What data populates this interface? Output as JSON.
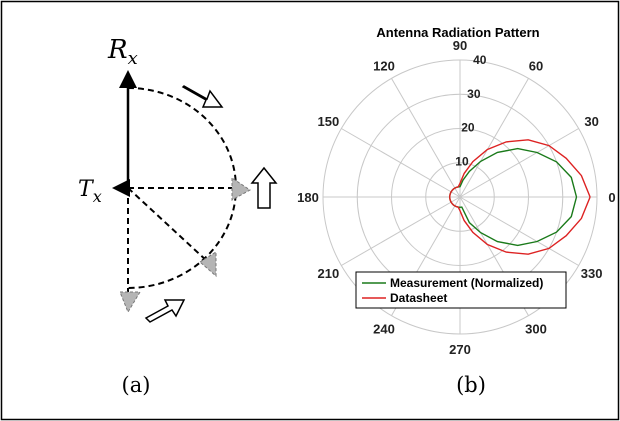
{
  "panel_a": {
    "caption": "(a)",
    "rx_symbol": "R",
    "rx_subscript": "x",
    "tx_symbol": "T",
    "tx_subscript": "x"
  },
  "panel_b": {
    "caption": "(b)"
  },
  "colors": {
    "measurement": "#1a7a1a",
    "datasheet": "#dd2222",
    "grid": "#c8c8c8",
    "frame": "#000000"
  },
  "chart_data": {
    "type": "polar-line",
    "title": "Antenna Radiation Pattern",
    "r_range": [
      0,
      40
    ],
    "r_ticks": [
      10,
      20,
      30,
      40
    ],
    "r_tick_labels": [
      "10",
      "20",
      "30",
      "40"
    ],
    "theta_ticks_deg": [
      0,
      30,
      60,
      90,
      120,
      150,
      180,
      210,
      240,
      270,
      300,
      330
    ],
    "theta_tick_labels": [
      "0",
      "30",
      "60",
      "90",
      "120",
      "150",
      "180",
      "210",
      "240",
      "270",
      "300",
      "330"
    ],
    "grid": true,
    "legend_position": "bottom-right",
    "series": [
      {
        "name": "Measurement (Normalized)",
        "color": "#1a7a1a",
        "points": [
          [
            0,
            34
          ],
          [
            10,
            33
          ],
          [
            20,
            30
          ],
          [
            30,
            26
          ],
          [
            40,
            22
          ],
          [
            50,
            17
          ],
          [
            60,
            12
          ],
          [
            70,
            8
          ],
          [
            80,
            5
          ],
          [
            90,
            3
          ],
          [
            100,
            3
          ],
          [
            110,
            3
          ],
          [
            120,
            3
          ],
          [
            130,
            3
          ],
          [
            140,
            3
          ],
          [
            150,
            3
          ],
          [
            160,
            3
          ],
          [
            170,
            3
          ],
          [
            180,
            3
          ],
          [
            190,
            3
          ],
          [
            200,
            3
          ],
          [
            210,
            3
          ],
          [
            220,
            3
          ],
          [
            230,
            3
          ],
          [
            240,
            3
          ],
          [
            250,
            3
          ],
          [
            260,
            3
          ],
          [
            270,
            3
          ],
          [
            280,
            3
          ],
          [
            290,
            8
          ],
          [
            300,
            12
          ],
          [
            310,
            17
          ],
          [
            320,
            22
          ],
          [
            330,
            26
          ],
          [
            340,
            30
          ],
          [
            350,
            33
          ]
        ]
      },
      {
        "name": "Datasheet",
        "color": "#dd2222",
        "points": [
          [
            0,
            38
          ],
          [
            10,
            36
          ],
          [
            20,
            33
          ],
          [
            30,
            30
          ],
          [
            40,
            26
          ],
          [
            50,
            21
          ],
          [
            60,
            16
          ],
          [
            70,
            11
          ],
          [
            80,
            7
          ],
          [
            90,
            4
          ],
          [
            100,
            3
          ],
          [
            110,
            3
          ],
          [
            120,
            3
          ],
          [
            130,
            3
          ],
          [
            140,
            3
          ],
          [
            150,
            3
          ],
          [
            160,
            3
          ],
          [
            170,
            3
          ],
          [
            180,
            3
          ],
          [
            190,
            3
          ],
          [
            200,
            3
          ],
          [
            210,
            3
          ],
          [
            220,
            3
          ],
          [
            230,
            3
          ],
          [
            240,
            3
          ],
          [
            250,
            3
          ],
          [
            260,
            3
          ],
          [
            270,
            4
          ],
          [
            280,
            7
          ],
          [
            290,
            11
          ],
          [
            300,
            16
          ],
          [
            310,
            21
          ],
          [
            320,
            26
          ],
          [
            330,
            30
          ],
          [
            340,
            33
          ],
          [
            350,
            36
          ]
        ]
      }
    ]
  }
}
